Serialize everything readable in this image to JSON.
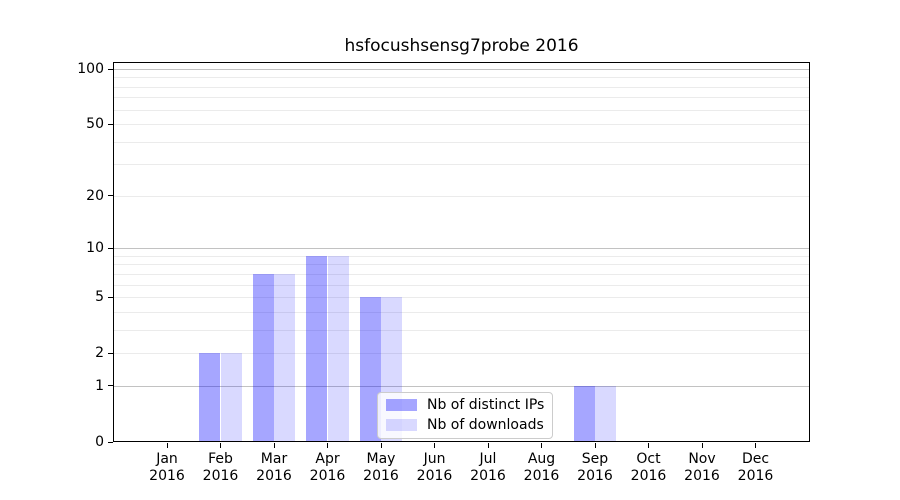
{
  "figure": {
    "background": "#ffffff",
    "spine_color": "#000000"
  },
  "chart_data": {
    "type": "bar",
    "title": "hsfocushsensg7probe 2016",
    "categories": [
      {
        "month": "Jan",
        "year": "2016"
      },
      {
        "month": "Feb",
        "year": "2016"
      },
      {
        "month": "Mar",
        "year": "2016"
      },
      {
        "month": "Apr",
        "year": "2016"
      },
      {
        "month": "May",
        "year": "2016"
      },
      {
        "month": "Jun",
        "year": "2016"
      },
      {
        "month": "Jul",
        "year": "2016"
      },
      {
        "month": "Aug",
        "year": "2016"
      },
      {
        "month": "Sep",
        "year": "2016"
      },
      {
        "month": "Oct",
        "year": "2016"
      },
      {
        "month": "Nov",
        "year": "2016"
      },
      {
        "month": "Dec",
        "year": "2016"
      }
    ],
    "series": [
      {
        "name": "Nb of distinct IPs",
        "color": "rgba(0,0,255,0.35)",
        "values": [
          0,
          2,
          7,
          9,
          5,
          0,
          0,
          0,
          1,
          0,
          0,
          0
        ]
      },
      {
        "name": "Nb of downloads",
        "color": "rgba(0,0,255,0.15)",
        "values": [
          0,
          2,
          7,
          9,
          5,
          0,
          0,
          0,
          1,
          0,
          0,
          0
        ]
      }
    ],
    "y_axis": {
      "scale": "log1p",
      "tick_values": [
        0,
        1,
        2,
        5,
        10,
        20,
        50,
        100
      ],
      "ylim": [
        0,
        101
      ],
      "major_gridlines": [
        1,
        10,
        100
      ],
      "minor_gridlines": [
        2,
        3,
        4,
        5,
        6,
        7,
        8,
        9,
        20,
        30,
        40,
        50,
        60,
        70,
        80,
        90
      ],
      "major_grid_color": "#c2c2c2",
      "minor_grid_color": "#ebebeb"
    },
    "xlabel": "",
    "ylabel": "",
    "grid": true,
    "legend_position": "inside-bottom-center"
  }
}
